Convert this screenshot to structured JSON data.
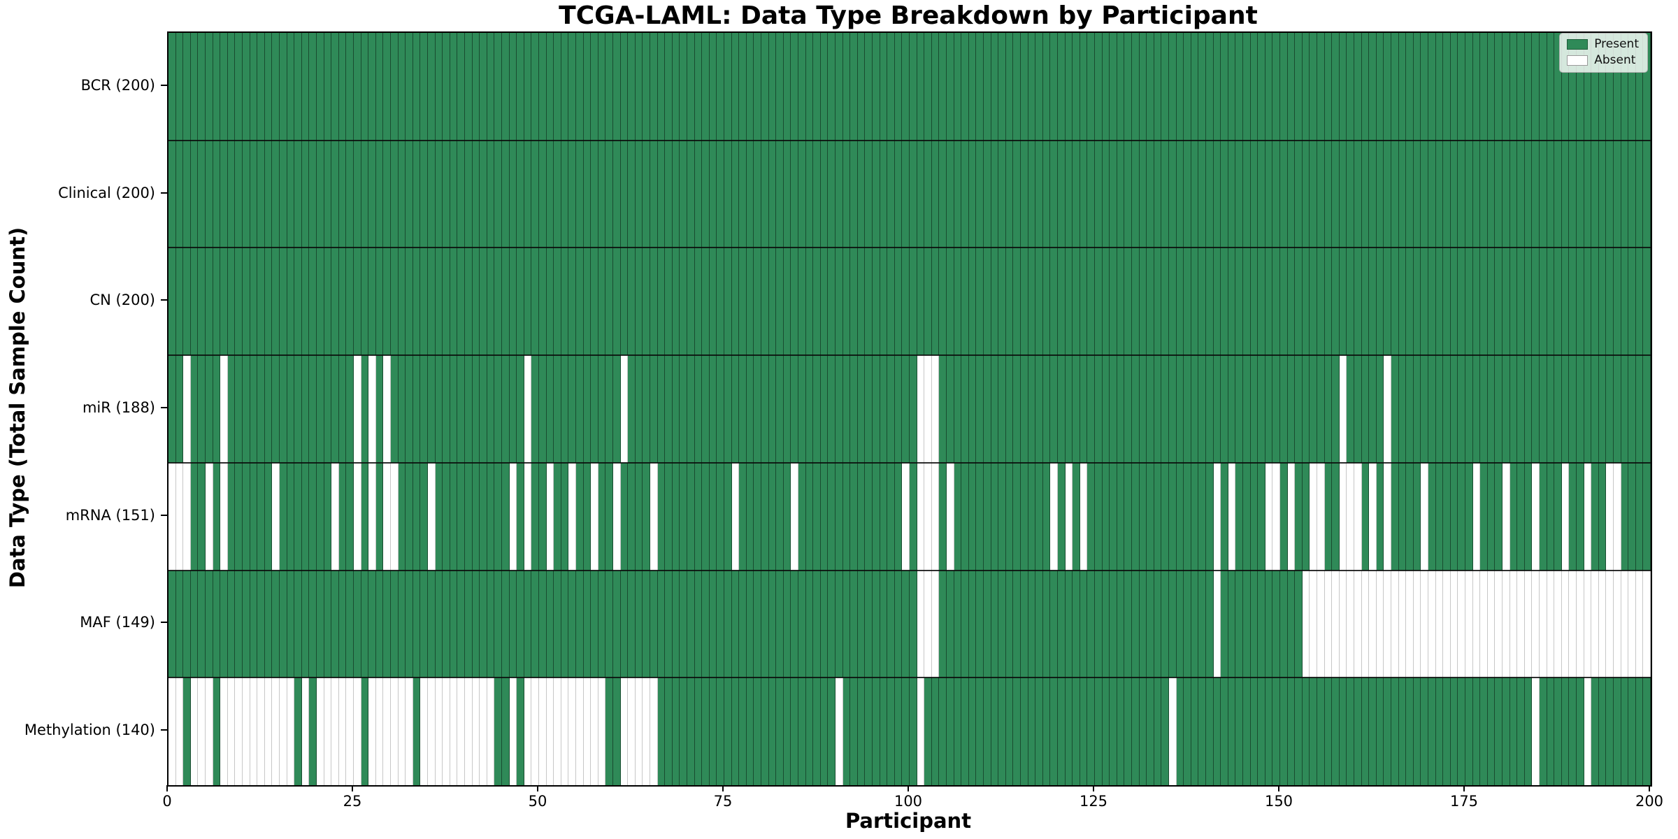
{
  "title": "TCGA-LAML: Data Type Breakdown by Participant",
  "x_axis": {
    "label": "Participant",
    "ticks": [
      0,
      25,
      50,
      75,
      100,
      125,
      150,
      175,
      200
    ]
  },
  "y_axis": {
    "label": "Data Type (Total Sample Count)"
  },
  "legend": {
    "present_label": "Present",
    "absent_label": "Absent"
  },
  "colors": {
    "present": "#2f8a58",
    "absent": "#ffffff"
  },
  "chart_data": {
    "type": "heatmap",
    "n_participants": 200,
    "x_range": [
      0,
      200
    ],
    "grid": false,
    "legend_position": "upper right",
    "rows": [
      {
        "name": "BCR",
        "label": "BCR (200)",
        "present_count": 200,
        "absent": []
      },
      {
        "name": "Clinical",
        "label": "Clinical (200)",
        "present_count": 200,
        "absent": []
      },
      {
        "name": "CN",
        "label": "CN (200)",
        "present_count": 200,
        "absent": []
      },
      {
        "name": "miR",
        "label": "miR (188)",
        "present_count": 188,
        "absent": [
          2,
          7,
          25,
          27,
          29,
          48,
          61,
          101,
          102,
          103,
          158,
          164
        ]
      },
      {
        "name": "mRNA",
        "label": "mRNA (151)",
        "present_count": 151,
        "absent": [
          0,
          1,
          2,
          5,
          7,
          14,
          22,
          25,
          27,
          29,
          30,
          35,
          46,
          48,
          51,
          54,
          57,
          60,
          65,
          76,
          84,
          99,
          101,
          102,
          103,
          105,
          119,
          121,
          123,
          141,
          143,
          148,
          149,
          151,
          154,
          155,
          158,
          159,
          160,
          162,
          164,
          169,
          176,
          180,
          184,
          188,
          191,
          194,
          195
        ]
      },
      {
        "name": "MAF",
        "label": "MAF (149)",
        "present_count": 149,
        "absent": [
          101,
          102,
          103,
          141,
          153,
          154,
          155,
          156,
          157,
          158,
          159,
          160,
          161,
          162,
          163,
          164,
          165,
          166,
          167,
          168,
          169,
          170,
          171,
          172,
          173,
          174,
          175,
          176,
          177,
          178,
          179,
          180,
          181,
          182,
          183,
          184,
          185,
          186,
          187,
          188,
          189,
          190,
          191,
          192,
          193,
          194,
          195,
          196,
          197,
          198,
          199
        ]
      },
      {
        "name": "Methylation",
        "label": "Methylation (140)",
        "present_count": 140,
        "absent": [
          0,
          1,
          3,
          4,
          5,
          7,
          8,
          9,
          10,
          11,
          12,
          13,
          14,
          15,
          16,
          18,
          20,
          21,
          22,
          23,
          24,
          25,
          27,
          28,
          29,
          30,
          31,
          32,
          34,
          35,
          36,
          37,
          38,
          39,
          40,
          41,
          42,
          43,
          46,
          48,
          49,
          50,
          51,
          52,
          53,
          54,
          55,
          56,
          57,
          58,
          61,
          62,
          63,
          64,
          65,
          90,
          101,
          135,
          184,
          191
        ]
      }
    ]
  }
}
